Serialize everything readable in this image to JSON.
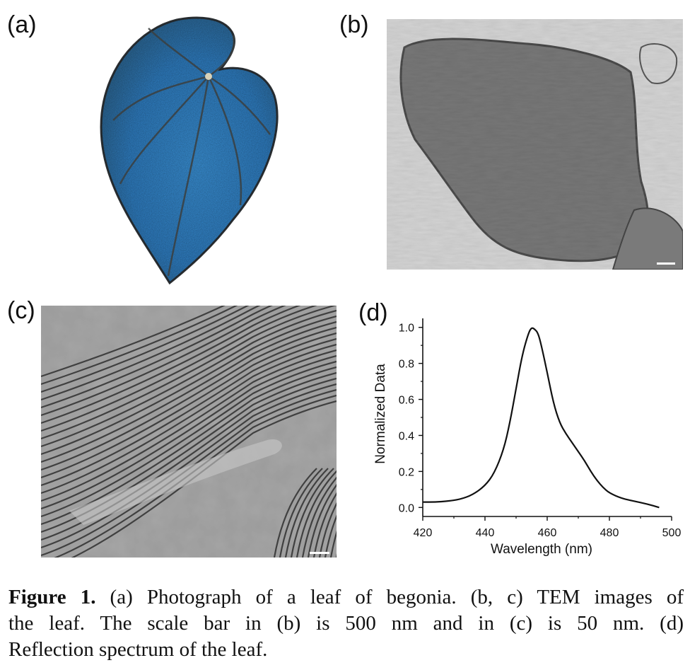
{
  "panels": {
    "a": "(a)",
    "b": "(b)",
    "c": "(c)",
    "d": "(d)"
  },
  "colors": {
    "leaf_blue": "#2f7fc4",
    "leaf_dark": "#2c3a44",
    "tem_gray": "#6e6e6e"
  },
  "chart_data": {
    "type": "line",
    "xlabel": "Wavelength (nm)",
    "ylabel": "Normalized Data",
    "xlim": [
      420,
      500
    ],
    "ylim": [
      -0.05,
      1.05
    ],
    "xticks": [
      420,
      440,
      460,
      480,
      500
    ],
    "yticks": [
      0.0,
      0.2,
      0.4,
      0.6,
      0.8,
      1.0
    ],
    "grid": false,
    "series": [
      {
        "x": [
          420,
          424,
          428,
          432,
          436,
          440,
          443,
          446,
          448,
          450,
          452,
          454,
          455,
          456,
          457,
          458,
          460,
          462,
          464,
          466,
          468,
          470,
          472,
          474,
          476,
          478,
          480,
          484,
          488,
          492,
          496
        ],
        "y": [
          0.03,
          0.03,
          0.035,
          0.045,
          0.07,
          0.12,
          0.19,
          0.32,
          0.47,
          0.66,
          0.85,
          0.97,
          1.0,
          0.99,
          0.97,
          0.91,
          0.75,
          0.58,
          0.47,
          0.41,
          0.36,
          0.31,
          0.26,
          0.2,
          0.15,
          0.11,
          0.08,
          0.05,
          0.035,
          0.02,
          0.0
        ]
      }
    ]
  },
  "caption": {
    "lines": [
      {
        "bold": "Figure 1.",
        "text": " (a) Photograph of a leaf of begonia. (b, c) TEM images of"
      },
      {
        "bold": "",
        "text": "the leaf. The scale bar in (b) is 500 nm and in (c) is 50 nm. (d)"
      },
      {
        "bold": "",
        "text": "Reflection spectrum of the leaf."
      }
    ]
  }
}
